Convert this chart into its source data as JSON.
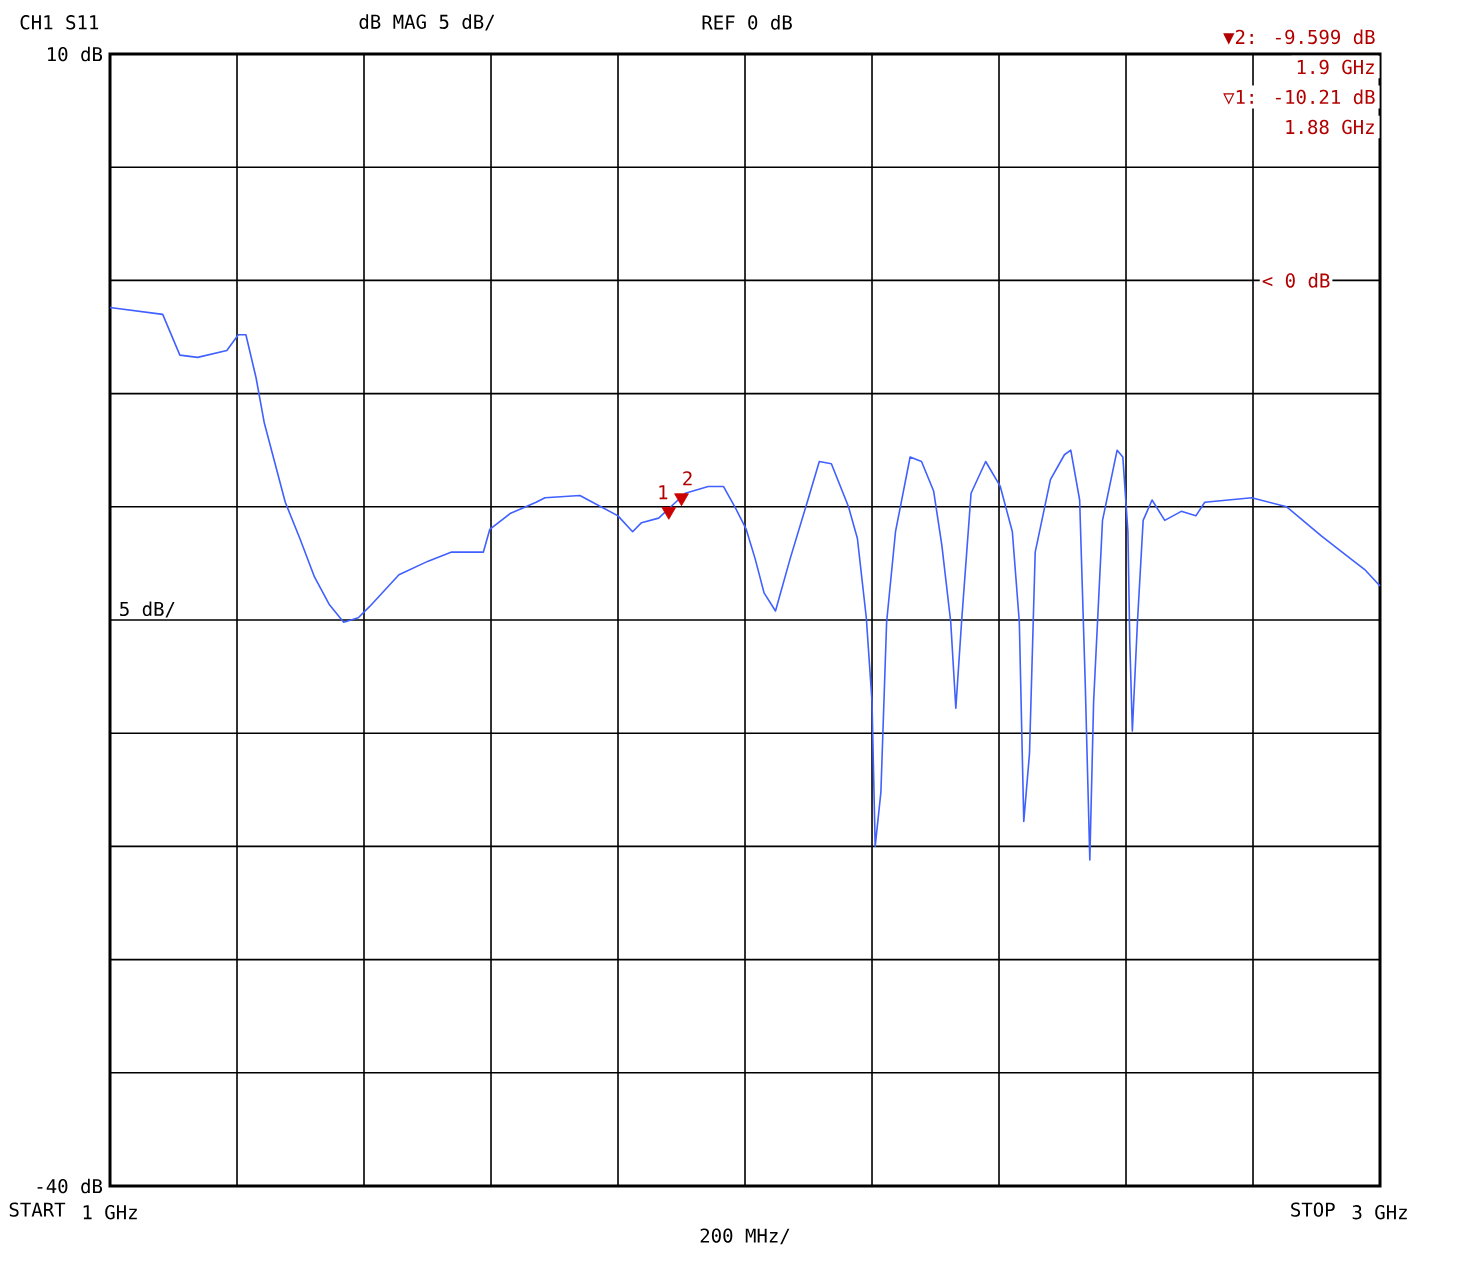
{
  "chart_data": {
    "type": "line",
    "title": "CH1 S11",
    "annotations": [
      "dB   MAG 5 dB/",
      "REF 0 dB",
      "▼2:  -9.599 dB",
      "1.9 GHz",
      "▽1:  -10.21 dB",
      "1.88 GHz",
      "5  dB/",
      "200 MHz/",
      "< 0 dB",
      "START",
      "STOP",
      {
        "text": "1",
        "x": 1.88,
        "y": -10.21
      },
      {
        "text": "2",
        "x": 1.9,
        "y": -9.599
      }
    ],
    "xlim": [
      1,
      3
    ],
    "ylim": [
      -40,
      10
    ],
    "xticks": [
      {
        "value": 1,
        "label": "1 GHz"
      },
      {
        "value": 1.2,
        "label": null
      },
      {
        "value": 1.4,
        "label": null
      },
      {
        "value": 1.6,
        "label": null
      },
      {
        "value": 1.8,
        "label": null
      },
      {
        "value": 2,
        "label": null
      },
      {
        "value": 2.2,
        "label": null
      },
      {
        "value": 2.4,
        "label": null
      },
      {
        "value": 2.6,
        "label": null
      },
      {
        "value": 2.8,
        "label": null
      },
      {
        "value": 3,
        "label": "3 GHz"
      }
    ],
    "yticks": [
      {
        "value": 10,
        "label": "10 dB"
      },
      {
        "value": 5,
        "label": null
      },
      {
        "value": 0,
        "label": null
      },
      {
        "value": -5,
        "label": null
      },
      {
        "value": -10,
        "label": null
      },
      {
        "value": -15,
        "label": null
      },
      {
        "value": -20,
        "label": null
      },
      {
        "value": -25,
        "label": null
      },
      {
        "value": -30,
        "label": null
      },
      {
        "value": -35,
        "label": null
      },
      {
        "value": -40,
        "label": "-40 dB"
      }
    ],
    "grid": true,
    "series": [
      {
        "color": "#4060ff",
        "x": [
          1.0,
          1.083,
          1.11,
          1.138,
          1.184,
          1.202,
          1.214,
          1.23,
          1.243,
          1.276,
          1.299,
          1.322,
          1.345,
          1.368,
          1.391,
          1.409,
          1.455,
          1.501,
          1.538,
          1.588,
          1.598,
          1.63,
          1.671,
          1.685,
          1.74,
          1.8,
          1.823,
          1.837,
          1.864,
          1.887,
          1.906,
          1.942,
          1.966,
          1.984,
          2.002,
          2.016,
          2.03,
          2.048,
          2.071,
          2.099,
          2.117,
          2.136,
          2.163,
          2.177,
          2.191,
          2.2,
          2.205,
          2.214,
          2.223,
          2.237,
          2.26,
          2.278,
          2.297,
          2.31,
          2.324,
          2.332,
          2.341,
          2.356,
          2.379,
          2.402,
          2.421,
          2.432,
          2.439,
          2.448,
          2.457,
          2.481,
          2.503,
          2.513,
          2.527,
          2.536,
          2.543,
          2.549,
          2.563,
          2.586,
          2.595,
          2.603,
          2.606,
          2.61,
          2.618,
          2.627,
          2.641,
          2.661,
          2.687,
          2.71,
          2.724,
          2.798,
          2.853,
          2.908,
          2.954,
          2.977,
          3.0
        ],
        "values": [
          -1.2,
          -1.5,
          -3.3,
          -3.4,
          -3.1,
          -2.4,
          -2.4,
          -4.3,
          -6.3,
          -9.8,
          -11.4,
          -13.1,
          -14.3,
          -15.1,
          -14.9,
          -14.4,
          -13.0,
          -12.4,
          -12.0,
          -12.0,
          -11.0,
          -10.3,
          -9.8,
          -9.6,
          -9.5,
          -10.4,
          -11.1,
          -10.7,
          -10.5,
          -9.9,
          -9.4,
          -9.1,
          -9.1,
          -10.0,
          -11.0,
          -12.3,
          -13.8,
          -14.6,
          -12.3,
          -9.7,
          -8.0,
          -8.1,
          -10.0,
          -11.4,
          -14.9,
          -18.6,
          -25.0,
          -22.6,
          -15.1,
          -11.1,
          -7.8,
          -8.0,
          -9.3,
          -11.7,
          -15.1,
          -18.9,
          -15.1,
          -9.4,
          -8.0,
          -9.1,
          -11.1,
          -15.1,
          -23.9,
          -20.9,
          -12.0,
          -8.8,
          -7.7,
          -7.5,
          -9.7,
          -18.0,
          -25.6,
          -18.6,
          -10.6,
          -7.5,
          -7.8,
          -11.1,
          -16.0,
          -19.9,
          -15.1,
          -10.6,
          -9.7,
          -10.6,
          -10.2,
          -10.4,
          -9.8,
          -9.6,
          -10.0,
          -11.3,
          -12.3,
          -12.8,
          -13.5
        ]
      },
      {
        "type": "scatter",
        "color": "#cc0000",
        "marker": "triangle",
        "x": [
          1.88,
          1.9
        ],
        "values": [
          -10.2,
          -9.6
        ]
      }
    ]
  }
}
